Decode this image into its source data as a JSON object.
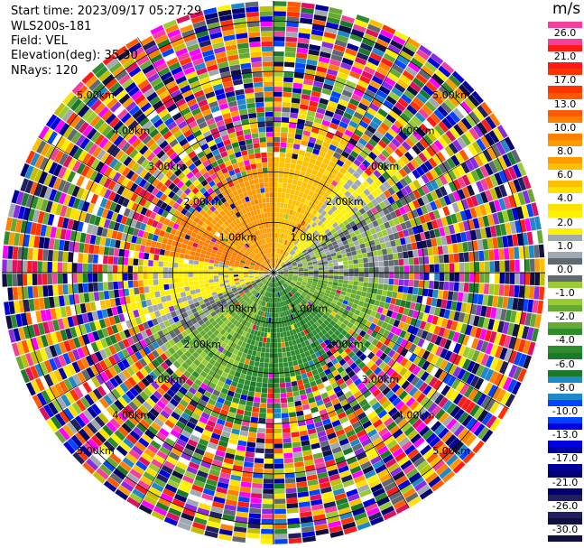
{
  "info": {
    "start_time": "Start time: 2023/09/17 05:27:29",
    "station": "WLS200s-181",
    "field": "Field: VEL",
    "elevation": "Elevation(deg): 35.30",
    "nrays": "NRays: 120"
  },
  "colorbar": {
    "unit": "m/s",
    "bins": [
      {
        "label": "26.0",
        "color": "#f4409a"
      },
      {
        "label": "21.0",
        "color": "#ff1a1a"
      },
      {
        "label": "17.0",
        "color": "#ff3300"
      },
      {
        "label": "13.0",
        "color": "#ff5a00"
      },
      {
        "label": "10.0",
        "color": "#ff7f00"
      },
      {
        "label": "8.0",
        "color": "#ff9a00"
      },
      {
        "label": "6.0",
        "color": "#ffc000"
      },
      {
        "label": "4.0",
        "color": "#ffe000"
      },
      {
        "label": "2.0",
        "color": "#fff200"
      },
      {
        "label": "1.0",
        "color": "#a0a8b0"
      },
      {
        "label": "0.0",
        "color": "#606870"
      },
      {
        "label": "-1.0",
        "color": "#99cc33"
      },
      {
        "label": "-2.0",
        "color": "#66aa33"
      },
      {
        "label": "-4.0",
        "color": "#2e8b2e"
      },
      {
        "label": "-6.0",
        "color": "#1a7a2a"
      },
      {
        "label": "-8.0",
        "color": "#1e88c8"
      },
      {
        "label": "-10.0",
        "color": "#0044ff"
      },
      {
        "label": "-13.0",
        "color": "#0000e0"
      },
      {
        "label": "-17.0",
        "color": "#0000a0"
      },
      {
        "label": "-21.0",
        "color": "#000070"
      },
      {
        "label": "-26.0",
        "color": "#202060"
      },
      {
        "label": "-30.0",
        "color": "#101040"
      }
    ]
  },
  "chart_data": {
    "type": "heatmap",
    "subtype": "radar-ppi",
    "field": "VEL",
    "unit": "m/s",
    "nrays": 120,
    "elevation_deg": 35.3,
    "range_rings_km": [
      1.0,
      2.0,
      3.0,
      4.0,
      5.0
    ],
    "ring_label_texts": [
      "1.00km",
      "2.00km",
      "3.00km",
      "4.00km",
      "5.00km"
    ],
    "max_range_km": 5.4,
    "valid_range_km": 3.0,
    "grid": true,
    "approx_field": [
      {
        "az_from": 280,
        "az_to": 300,
        "value": 10.0
      },
      {
        "az_from": 300,
        "az_to": 360,
        "value": 8.0
      },
      {
        "az_from": 0,
        "az_to": 35,
        "value": 6.0
      },
      {
        "az_from": 35,
        "az_to": 55,
        "value": 2.0
      },
      {
        "az_from": 55,
        "az_to": 95,
        "value": 0.0
      },
      {
        "az_from": 95,
        "az_to": 130,
        "value": -2.0
      },
      {
        "az_from": 130,
        "az_to": 200,
        "value": -4.0
      },
      {
        "az_from": 200,
        "az_to": 235,
        "value": -2.0
      },
      {
        "az_from": 235,
        "az_to": 250,
        "value": 0.0
      },
      {
        "az_from": 250,
        "az_to": 280,
        "value": 2.0
      }
    ]
  }
}
